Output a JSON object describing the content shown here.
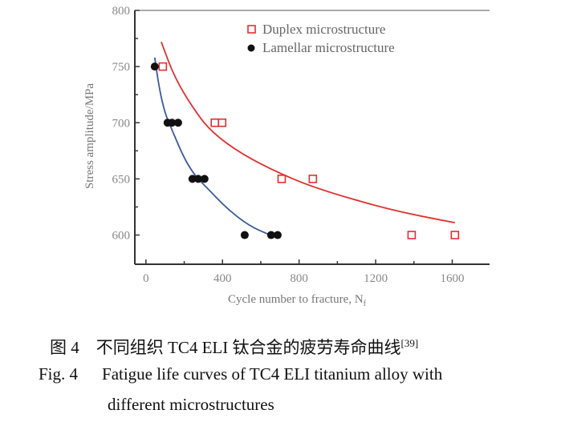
{
  "chart_data": {
    "type": "scatter",
    "xlabel": "Cycle number to fracture, N",
    "xlabel_subscript": "f",
    "ylabel": "Stress amplitude/MPa",
    "xlim": [
      -58,
      1795
    ],
    "ylim": [
      574,
      800
    ],
    "xticks": [
      0,
      400,
      800,
      1200,
      1600
    ],
    "xtick_labels": [
      "0",
      "400",
      "800",
      "1200",
      "1600"
    ],
    "yticks": [
      600,
      650,
      700,
      750,
      800
    ],
    "ytick_labels": [
      "600",
      "650",
      "700",
      "750",
      "800"
    ],
    "grid": false,
    "legend_position": "top-right",
    "series": [
      {
        "name": "Duplex microstructure",
        "marker": "open-square",
        "color": "#e03030",
        "points": [
          [
            88,
            750
          ],
          [
            360,
            700
          ],
          [
            398,
            700
          ],
          [
            709,
            650
          ],
          [
            872,
            650
          ],
          [
            1388,
            600
          ],
          [
            1614,
            600
          ]
        ],
        "fit_curve": [
          [
            80,
            772
          ],
          [
            150,
            740
          ],
          [
            250,
            712
          ],
          [
            340,
            692
          ],
          [
            500,
            672
          ],
          [
            709,
            654
          ],
          [
            900,
            641
          ],
          [
            1200,
            626
          ],
          [
            1400,
            618
          ],
          [
            1614,
            611
          ]
        ]
      },
      {
        "name": "Lamellar microstructure",
        "marker": "filled-circle",
        "color": "#111111",
        "curve_color": "#3a5a9a",
        "points": [
          [
            46,
            750
          ],
          [
            113,
            700
          ],
          [
            136,
            700
          ],
          [
            168,
            700
          ],
          [
            243,
            650
          ],
          [
            273,
            650
          ],
          [
            306,
            650
          ],
          [
            516,
            600
          ],
          [
            654,
            600
          ],
          [
            688,
            600
          ]
        ],
        "fit_curve": [
          [
            46,
            758
          ],
          [
            70,
            730
          ],
          [
            100,
            708
          ],
          [
            138,
            693
          ],
          [
            200,
            668
          ],
          [
            260,
            652
          ],
          [
            314,
            643
          ],
          [
            420,
            624
          ],
          [
            540,
            608
          ],
          [
            650,
            600
          ]
        ]
      }
    ]
  },
  "caption": {
    "cn_label": "图 4",
    "cn_text": "不同组织 TC4 ELI 钛合金的疲劳寿命曲线",
    "cn_ref": "[39]",
    "en_label": "Fig. 4",
    "en_line1": "Fatigue life curves of TC4 ELI titanium alloy with",
    "en_line2": "different microstructures"
  }
}
